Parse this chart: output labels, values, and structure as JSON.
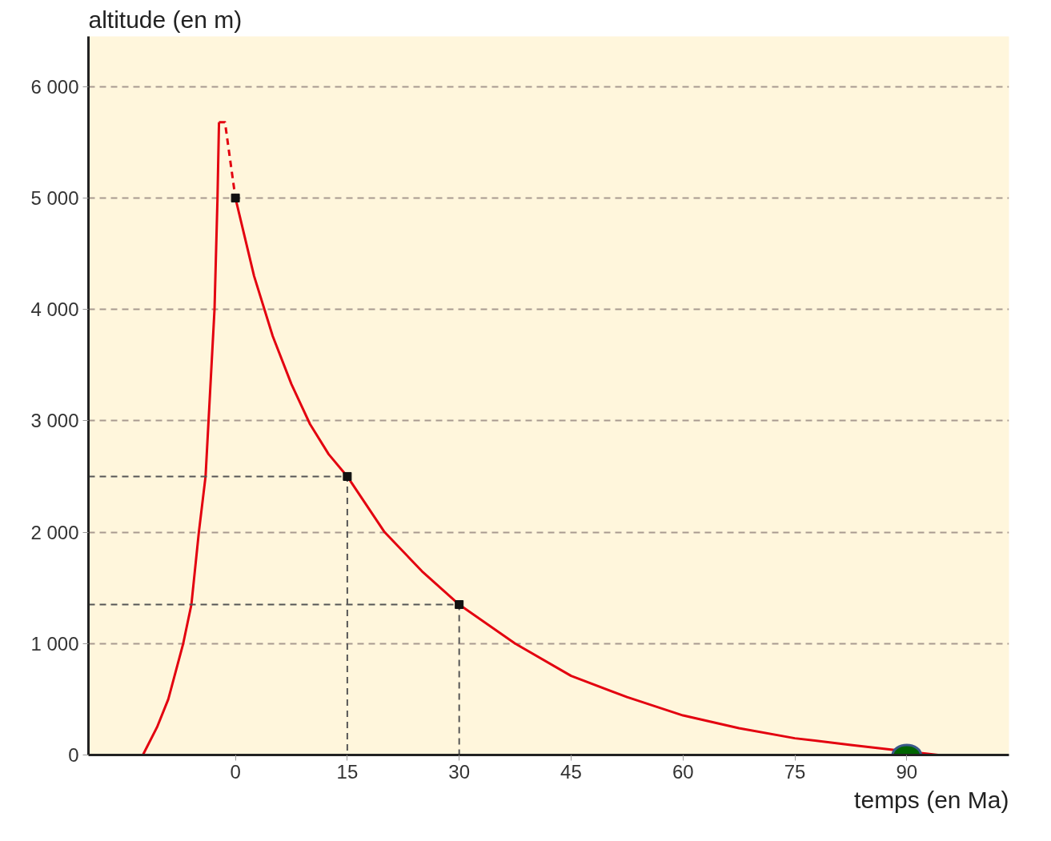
{
  "chart_data": {
    "type": "line",
    "xlabel": "temps (en Ma)",
    "ylabel": "altitude (en m)",
    "xlim": [
      -19.7,
      103.7
    ],
    "ylim": [
      0,
      6450
    ],
    "xticks": [
      0,
      15,
      30,
      45,
      60,
      75,
      90
    ],
    "yticks": [
      0,
      {
        "value": 1000,
        "label": "1 000"
      },
      {
        "value": 2000,
        "label": "2 000"
      },
      {
        "value": 3000,
        "label": "3 000"
      },
      {
        "value": 4000,
        "label": "4 000"
      },
      {
        "value": 5000,
        "label": "5 000"
      },
      {
        "value": 6000,
        "label": "6 000"
      }
    ],
    "grid": "y",
    "series": [
      {
        "color": "#e3000f",
        "line_style": "solid",
        "x": [
          -12.4,
          -10.5,
          -9.0,
          -7.0,
          -5.9,
          -4.9,
          -4.0,
          -3.6,
          -2.8,
          -2.4,
          -2.2
        ],
        "values": [
          0,
          250,
          500,
          1000,
          1350,
          2000,
          2500,
          3000,
          4000,
          5000,
          5680
        ]
      },
      {
        "color": "#e3000f",
        "line_style": "dashed",
        "x": [
          -2.2,
          -1.4,
          0
        ],
        "values": [
          5680,
          5680,
          5000
        ]
      },
      {
        "color": "#e3000f",
        "line_style": "solid",
        "x": [
          0,
          2.5,
          5,
          7.5,
          10,
          12.5,
          15,
          20,
          25,
          30,
          37.5,
          45,
          52.5,
          60,
          67.5,
          75,
          82.5,
          94.2
        ],
        "values": [
          5000,
          4300,
          3760,
          3330,
          2970,
          2700,
          2500,
          2000,
          1650,
          1350,
          1000,
          710,
          520,
          355,
          240,
          150,
          90,
          0
        ]
      },
      {
        "color": "#555555",
        "line_style": "dashed",
        "x": [
          -19.7,
          15,
          15
        ],
        "values": [
          2500,
          2500,
          0
        ]
      },
      {
        "color": "#555555",
        "line_style": "dashed",
        "x": [
          -19.7,
          30,
          30
        ],
        "values": [
          1350,
          1350,
          0
        ]
      },
      {
        "type": "scatter",
        "color": "#111111",
        "marker": "square",
        "x": [
          0,
          15,
          30
        ],
        "values": [
          5000,
          2500,
          1350
        ]
      },
      {
        "type": "scatter",
        "color": "#006400",
        "marker": "circle",
        "x": [
          90
        ],
        "values": [
          0
        ]
      }
    ]
  }
}
